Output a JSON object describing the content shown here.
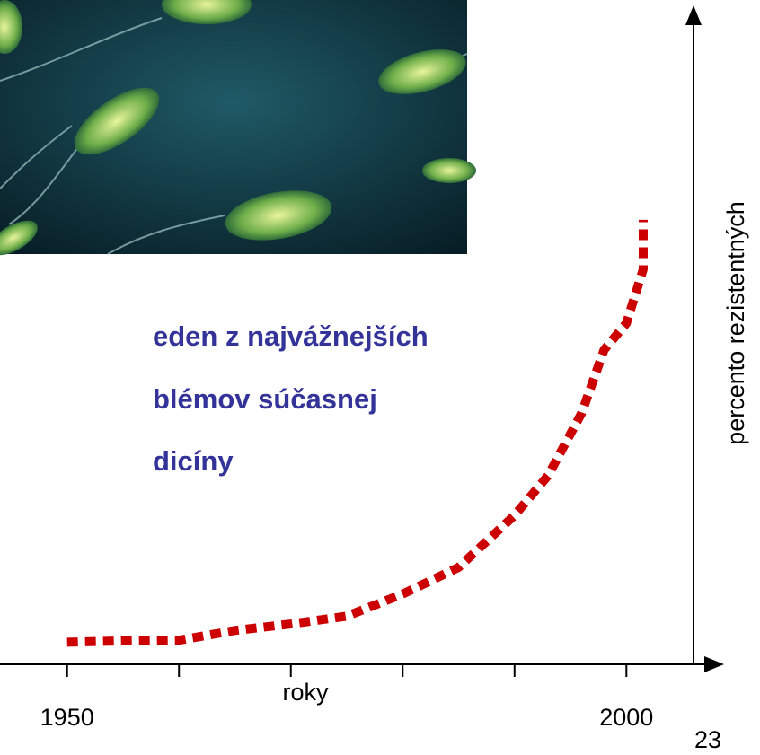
{
  "heading": [
    "eden z najvážnejších",
    "blémov súčasnej",
    "dicíny"
  ],
  "page_number": "23",
  "chart_data": {
    "type": "line",
    "x_label": "roky",
    "y_label": "percento rezistentných",
    "xlim": [
      1944,
      2006
    ],
    "ylim": [
      0,
      100
    ],
    "xticks": [
      1950,
      {
        "value": 1960,
        "label": null
      },
      {
        "value": 1970,
        "label": null
      },
      {
        "value": 1980,
        "label": null
      },
      {
        "value": 1990,
        "label": null
      },
      2000
    ],
    "x": [
      1950,
      1955,
      1960,
      1965,
      1970,
      1975,
      1980,
      1985,
      1990,
      1993,
      1996,
      1998,
      2000,
      2001.5,
      2001.5
    ],
    "series": [
      {
        "color": "#cc0000",
        "values": [
          3.4,
          3.6,
          3.7,
          5.2,
          6.2,
          7.4,
          10.8,
          14.9,
          22.9,
          29,
          38.6,
          48.3,
          52.4,
          60.7,
          68.3
        ]
      }
    ]
  }
}
